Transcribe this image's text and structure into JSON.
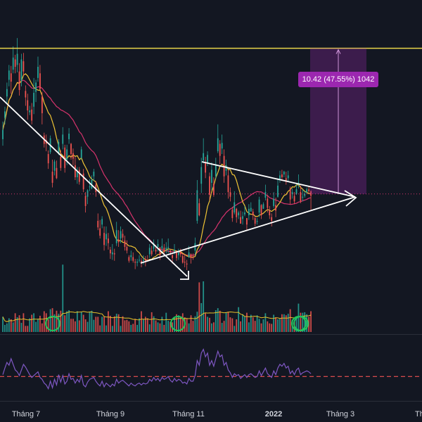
{
  "chart_data": {
    "type": "candlestick",
    "x_axis": {
      "ticks": [
        {
          "label": "Tháng 7",
          "bold": false
        },
        {
          "label": "Tháng 9",
          "bold": false
        },
        {
          "label": "Tháng 11",
          "bold": false
        },
        {
          "label": "2022",
          "bold": true
        },
        {
          "label": "Tháng 3",
          "bold": false
        },
        {
          "label": "Thá",
          "bold": false
        }
      ]
    },
    "price_range": [
      5,
      41
    ],
    "series": [
      {
        "kind": "candles",
        "up_color": "#26a69a",
        "down_color": "#ef5350",
        "close": [
          27.0,
          29.0,
          31.4,
          33.4,
          32.2,
          34.8,
          33.8,
          35.2,
          31.3,
          34.6,
          33.3,
          30.5,
          29.1,
          29.1,
          28.0,
          31.0,
          32.1,
          33.8,
          31.4,
          28.8,
          25.5,
          25.5,
          23.4,
          26.1,
          21.3,
          23.6,
          21.8,
          25.7,
          22.9,
          26.5,
          22.9,
          24.9,
          26.6,
          24.4,
          23.9,
          21.9,
          22.5,
          21.4,
          24.9,
          20.6,
          18.8,
          20.5,
          20.9,
          21.6,
          22.5,
          20.3,
          16.5,
          15.6,
          17.4,
          14.6,
          15.8,
          14.8,
          13.7,
          13.8,
          13.6,
          16.2,
          14.9,
          16.1,
          15.4,
          14.4,
          14.0,
          12.9,
          13.5,
          12.9,
          12.7,
          12.8,
          13.0,
          12.6,
          13.0,
          12.9,
          12.9,
          14.3,
          13.6,
          14.8,
          13.9,
          14.7,
          13.5,
          14.5,
          13.9,
          14.3,
          14.4,
          13.8,
          13.2,
          14.1,
          13.2,
          13.9,
          13.6,
          12.7,
          12.7,
          12.5,
          13.8,
          13.2,
          13.2,
          14.8,
          20.5,
          17.8,
          23.0,
          24.5,
          22.4,
          24.3,
          20.0,
          22.7,
          20.0,
          23.3,
          26.1,
          24.2,
          25.6,
          22.0,
          23.2,
          20.3,
          19.8,
          17.5,
          19.2,
          17.6,
          18.1,
          16.9,
          17.7,
          18.1,
          16.8,
          18.5,
          18.6,
          17.8,
          16.9,
          17.2,
          19.5,
          17.8,
          19.0,
          20.3,
          18.6,
          17.8,
          17.2,
          19.6,
          18.3,
          21.0,
          22.1,
          21.9,
          22.5,
          21.4,
          22.1,
          19.5,
          20.3,
          19.3,
          20.6,
          21.3,
          19.3,
          19.8,
          20.1,
          20.6,
          20.4,
          19.9
        ],
        "open": [
          26.0,
          28.3,
          30.6,
          32.4,
          33.1,
          33.5,
          34.6,
          34.0,
          33.3,
          32.3,
          34.4,
          31.2,
          30.2,
          28.9,
          29.2,
          29.5,
          31.1,
          32.6,
          33.1,
          30.6,
          26.4,
          25.9,
          24.4,
          24.6,
          22.5,
          22.6,
          22.9,
          24.5,
          24.1,
          25.5,
          25.1,
          23.8,
          26.0,
          25.5,
          24.5,
          23.2,
          21.9,
          22.7,
          24.0,
          22.3,
          19.9,
          19.8,
          20.9,
          20.7,
          22.0,
          21.1,
          17.2,
          16.4,
          16.8,
          15.9,
          15.2,
          15.3,
          14.1,
          13.6,
          13.7,
          14.8,
          15.2,
          15.3,
          15.8,
          15.1,
          14.4,
          13.3,
          13.3,
          13.3,
          12.8,
          12.7,
          13.0,
          12.9,
          12.9,
          13.1,
          13.0,
          13.6,
          14.0,
          14.2,
          14.1,
          14.4,
          14.3,
          14.2,
          14.3,
          14.1,
          14.3,
          14.0,
          13.5,
          13.7,
          13.8,
          13.5,
          13.8,
          13.4,
          12.8,
          12.6,
          13.3,
          13.6,
          13.3,
          14.0,
          17.2,
          19.1,
          21.2,
          23.7,
          23.5,
          23.4,
          22.0,
          21.3,
          21.2,
          22.0,
          24.7,
          25.5,
          25.0,
          24.2,
          22.6,
          22.1,
          20.3,
          18.4,
          18.1,
          18.5,
          17.8,
          17.6,
          17.4,
          17.9,
          17.5,
          17.8,
          18.2,
          18.2,
          17.5,
          17.1,
          18.1,
          18.9,
          18.5,
          19.7,
          19.6,
          18.3,
          17.6,
          18.8,
          18.9,
          19.8,
          21.7,
          22.2,
          22.2,
          21.8,
          21.8,
          20.7,
          20.1,
          19.9,
          20.1,
          21.1,
          20.3,
          19.7,
          19.9,
          20.3,
          20.6,
          20.4
        ],
        "high": [
          27.9,
          29.5,
          32.1,
          34.0,
          33.9,
          36.0,
          35.1,
          36.9,
          34.2,
          35.2,
          35.3,
          31.8,
          30.9,
          29.6,
          29.9,
          32.6,
          32.4,
          34.9,
          34.0,
          31.1,
          26.7,
          26.5,
          24.8,
          26.4,
          23.8,
          23.8,
          23.7,
          26.0,
          24.8,
          27.3,
          25.4,
          25.4,
          27.2,
          25.6,
          25.0,
          24.1,
          23.0,
          23.0,
          25.2,
          22.8,
          20.3,
          20.6,
          21.7,
          22.1,
          22.8,
          21.5,
          18.0,
          17.3,
          17.7,
          16.6,
          16.6,
          15.9,
          14.4,
          14.7,
          14.2,
          17.1,
          16.2,
          16.6,
          16.3,
          15.6,
          15.1,
          13.5,
          14.0,
          13.8,
          13.1,
          13.1,
          13.5,
          13.2,
          13.5,
          13.4,
          13.5,
          14.7,
          14.5,
          15.2,
          14.6,
          15.2,
          14.4,
          15.3,
          14.7,
          14.9,
          15.3,
          14.2,
          13.6,
          14.7,
          14.0,
          14.2,
          14.2,
          13.6,
          13.6,
          13.0,
          14.5,
          13.7,
          13.7,
          15.4,
          21.6,
          19.6,
          24.0,
          26.1,
          24.1,
          24.7,
          22.4,
          23.5,
          21.9,
          24.0,
          27.6,
          25.9,
          26.5,
          24.9,
          23.8,
          22.7,
          20.8,
          18.7,
          20.4,
          18.6,
          18.3,
          18.3,
          18.2,
          18.8,
          17.5,
          19.0,
          19.2,
          18.5,
          17.7,
          17.5,
          19.8,
          19.0,
          19.2,
          21.1,
          20.0,
          18.8,
          18.0,
          20.3,
          19.7,
          21.8,
          22.6,
          22.7,
          22.6,
          22.5,
          22.6,
          20.9,
          20.7,
          20.3,
          21.3,
          22.2,
          21.0,
          20.6,
          20.4,
          20.8,
          21.0,
          20.5
        ],
        "low": [
          25.3,
          27.6,
          29.9,
          31.7,
          30.9,
          33.1,
          33.1,
          33.2,
          30.7,
          31.7,
          32.8,
          29.6,
          28.1,
          28.6,
          27.6,
          28.7,
          30.0,
          32.2,
          31.3,
          27.6,
          25.1,
          24.7,
          22.8,
          24.4,
          20.8,
          22.1,
          21.7,
          24.3,
          22.6,
          24.9,
          22.4,
          23.2,
          25.5,
          23.8,
          23.2,
          21.6,
          21.2,
          21.1,
          23.8,
          20.3,
          18.1,
          19.0,
          20.4,
          20.6,
          21.5,
          19.8,
          16.2,
          15.3,
          16.4,
          14.0,
          14.5,
          14.1,
          13.1,
          13.0,
          12.9,
          14.5,
          14.4,
          14.8,
          15.0,
          14.0,
          13.7,
          12.7,
          12.9,
          12.7,
          12.0,
          12.3,
          12.7,
          12.2,
          12.5,
          12.3,
          12.8,
          13.2,
          13.4,
          13.9,
          13.6,
          13.9,
          13.0,
          13.7,
          13.4,
          13.7,
          13.7,
          13.5,
          12.6,
          13.6,
          12.9,
          13.0,
          13.3,
          12.6,
          12.2,
          11.9,
          13.2,
          12.6,
          13.0,
          13.5,
          16.9,
          17.7,
          20.2,
          23.4,
          21.8,
          23.1,
          19.4,
          20.5,
          19.8,
          21.7,
          24.5,
          23.3,
          24.4,
          21.3,
          22.1,
          19.6,
          19.3,
          17.1,
          17.9,
          17.0,
          17.4,
          16.9,
          16.8,
          17.7,
          16.1,
          17.3,
          18.2,
          17.3,
          16.6,
          16.8,
          17.6,
          17.4,
          18.5,
          19.4,
          18.1,
          17.4,
          16.6,
          18.6,
          17.6,
          19.7,
          21.3,
          21.5,
          21.9,
          21.1,
          21.5,
          19.0,
          19.6,
          19.0,
          20.0,
          20.7,
          19.1,
          19.3,
          19.7,
          20.1,
          20.1,
          18.4
        ]
      },
      {
        "kind": "ma-fast",
        "color": "#f0c435"
      },
      {
        "kind": "ma-slow",
        "color": "#d6336c"
      }
    ],
    "volume": {
      "values": [
        0.3,
        0.14,
        0.17,
        0.27,
        0.25,
        0.19,
        0.37,
        0.29,
        0.33,
        0.18,
        0.37,
        0.12,
        0.12,
        0.27,
        0.34,
        0.37,
        0.2,
        0.26,
        0.32,
        0.17,
        0.41,
        0.37,
        0.25,
        0.45,
        0.47,
        0.35,
        0.42,
        0.36,
        0.42,
        1.33,
        0.33,
        0.41,
        0.43,
        0.26,
        0.26,
        0.21,
        0.41,
        0.23,
        0.39,
        0.34,
        0.25,
        0.2,
        0.39,
        0.42,
        0.24,
        0.3,
        0.3,
        0.13,
        0.3,
        0.3,
        0.13,
        0.41,
        0.32,
        0.12,
        0.31,
        0.36,
        0.35,
        0.12,
        0.31,
        0.23,
        0.24,
        0.21,
        0.14,
        0.16,
        0.26,
        0.14,
        0.27,
        0.41,
        0.25,
        0.3,
        0.27,
        0.15,
        0.39,
        0.31,
        0.23,
        0.19,
        0.17,
        0.3,
        0.14,
        0.38,
        0.22,
        0.2,
        0.19,
        0.3,
        0.35,
        0.33,
        0.31,
        0.37,
        0.29,
        0.27,
        0.17,
        0.33,
        0.22,
        0.31,
        0.4,
        0.98,
        0.57,
        1.0,
        0.37,
        0.3,
        0.28,
        0.17,
        0.19,
        0.43,
        0.47,
        0.42,
        0.18,
        0.22,
        0.39,
        0.4,
        0.29,
        0.27,
        0.12,
        0.25,
        0.49,
        0.21,
        0.35,
        0.3,
        0.38,
        0.19,
        0.34,
        0.29,
        0.22,
        0.33,
        0.26,
        0.17,
        0.25,
        0.37,
        0.21,
        0.17,
        0.16,
        0.34,
        0.29,
        0.25,
        0.26,
        0.35,
        0.35,
        0.33,
        0.36,
        0.45,
        0.24,
        0.2,
        0.31,
        0.56,
        0.38,
        0.38,
        0.39,
        0.35,
        0.3,
        0.41
      ],
      "up_color": "#26a69a",
      "down_color": "#ef5350"
    },
    "indicator": {
      "values": [
        45,
        52,
        58,
        55,
        62,
        56,
        50,
        48,
        44,
        50,
        56,
        53,
        49,
        45,
        42,
        44,
        46,
        48,
        42,
        40,
        36,
        34,
        30,
        38,
        31,
        40,
        34,
        45,
        37,
        44,
        35,
        38,
        46,
        40,
        41,
        36,
        40,
        37,
        44,
        34,
        32,
        37,
        40,
        41,
        42,
        38,
        35,
        33,
        38,
        32,
        36,
        34,
        32,
        35,
        33,
        40,
        36,
        38,
        39,
        37,
        35,
        33,
        36,
        34,
        33,
        35,
        36,
        34,
        36,
        35,
        36,
        40,
        38,
        42,
        39,
        41,
        38,
        42,
        40,
        41,
        43,
        39,
        37,
        41,
        38,
        40,
        39,
        36,
        37,
        35,
        41,
        38,
        38,
        44,
        60,
        55,
        68,
        72,
        64,
        68,
        55,
        60,
        54,
        62,
        70,
        64,
        66,
        55,
        58,
        50,
        47,
        42,
        46,
        44,
        45,
        41,
        43,
        45,
        42,
        45,
        46,
        44,
        42,
        43,
        49,
        44,
        48,
        52,
        46,
        44,
        42,
        49,
        45,
        52,
        56,
        54,
        57,
        52,
        54,
        46,
        49,
        45,
        50,
        52,
        45,
        47,
        48,
        49,
        48,
        46
      ],
      "color": "#7e57c2",
      "level": 43,
      "level_color": "#f05252"
    },
    "annotations": [
      {
        "kind": "hline",
        "price": 35.8,
        "color": "#e8d54a"
      },
      {
        "kind": "price-line",
        "price": 20.1,
        "color": "#d6336c"
      },
      {
        "kind": "measure",
        "label": "10.42 (47.55%) 1042",
        "color": "#9c27b0"
      }
    ]
  }
}
